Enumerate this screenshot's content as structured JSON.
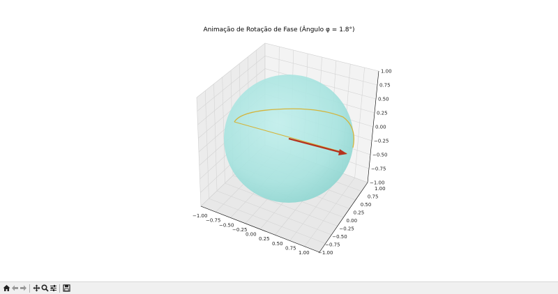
{
  "window": {
    "plot_title": "Animação de Rotação de Fase (Ângulo φ = 1.8°)"
  },
  "toolbar": {
    "buttons": [
      {
        "name": "home-button",
        "icon": "home-icon"
      },
      {
        "name": "back-button",
        "icon": "arrow-left-icon"
      },
      {
        "name": "forward-button",
        "icon": "arrow-right-icon"
      },
      {
        "name": "pan-button",
        "icon": "move-icon"
      },
      {
        "name": "zoom-button",
        "icon": "magnifier-icon"
      },
      {
        "name": "configure-subplots-button",
        "icon": "sliders-icon"
      },
      {
        "name": "save-button",
        "icon": "floppy-disk-icon"
      }
    ]
  },
  "chart_data": {
    "type": "3d-surface",
    "title": "Animação de Rotação de Fase (Ângulo φ = 1.8°)",
    "xlim": [
      -1.0,
      1.0
    ],
    "ylim": [
      -1.0,
      1.0
    ],
    "zlim": [
      -1.0,
      1.0
    ],
    "x_ticks": [
      "−1.00",
      "−0.75",
      "−0.50",
      "−0.25",
      "0.00",
      "0.25",
      "0.50",
      "0.75",
      "1.00"
    ],
    "y_ticks": [
      "−1.00",
      "−0.75",
      "−0.50",
      "−0.25",
      "0.00",
      "0.25",
      "0.50",
      "0.75",
      "1.00"
    ],
    "z_ticks": [
      "−1.00",
      "−0.75",
      "−0.50",
      "−0.25",
      "0.00",
      "0.25",
      "0.50",
      "0.75",
      "1.00"
    ],
    "grid": true,
    "elements": [
      {
        "kind": "sphere",
        "radius": 1.0,
        "color": "#9ee3df",
        "alpha": 0.65
      },
      {
        "kind": "arc",
        "color": "#d4b43a"
      },
      {
        "kind": "vector",
        "color": "#b5331f",
        "from": [
          0,
          0,
          0
        ],
        "to": [
          1,
          0,
          0
        ]
      }
    ],
    "colors": {
      "sphere": "#a9e6e2",
      "arc": "#d4b43a",
      "vector": "#b5331f",
      "pane": "#f2f2f2",
      "grid": "#d9d9d9"
    }
  }
}
